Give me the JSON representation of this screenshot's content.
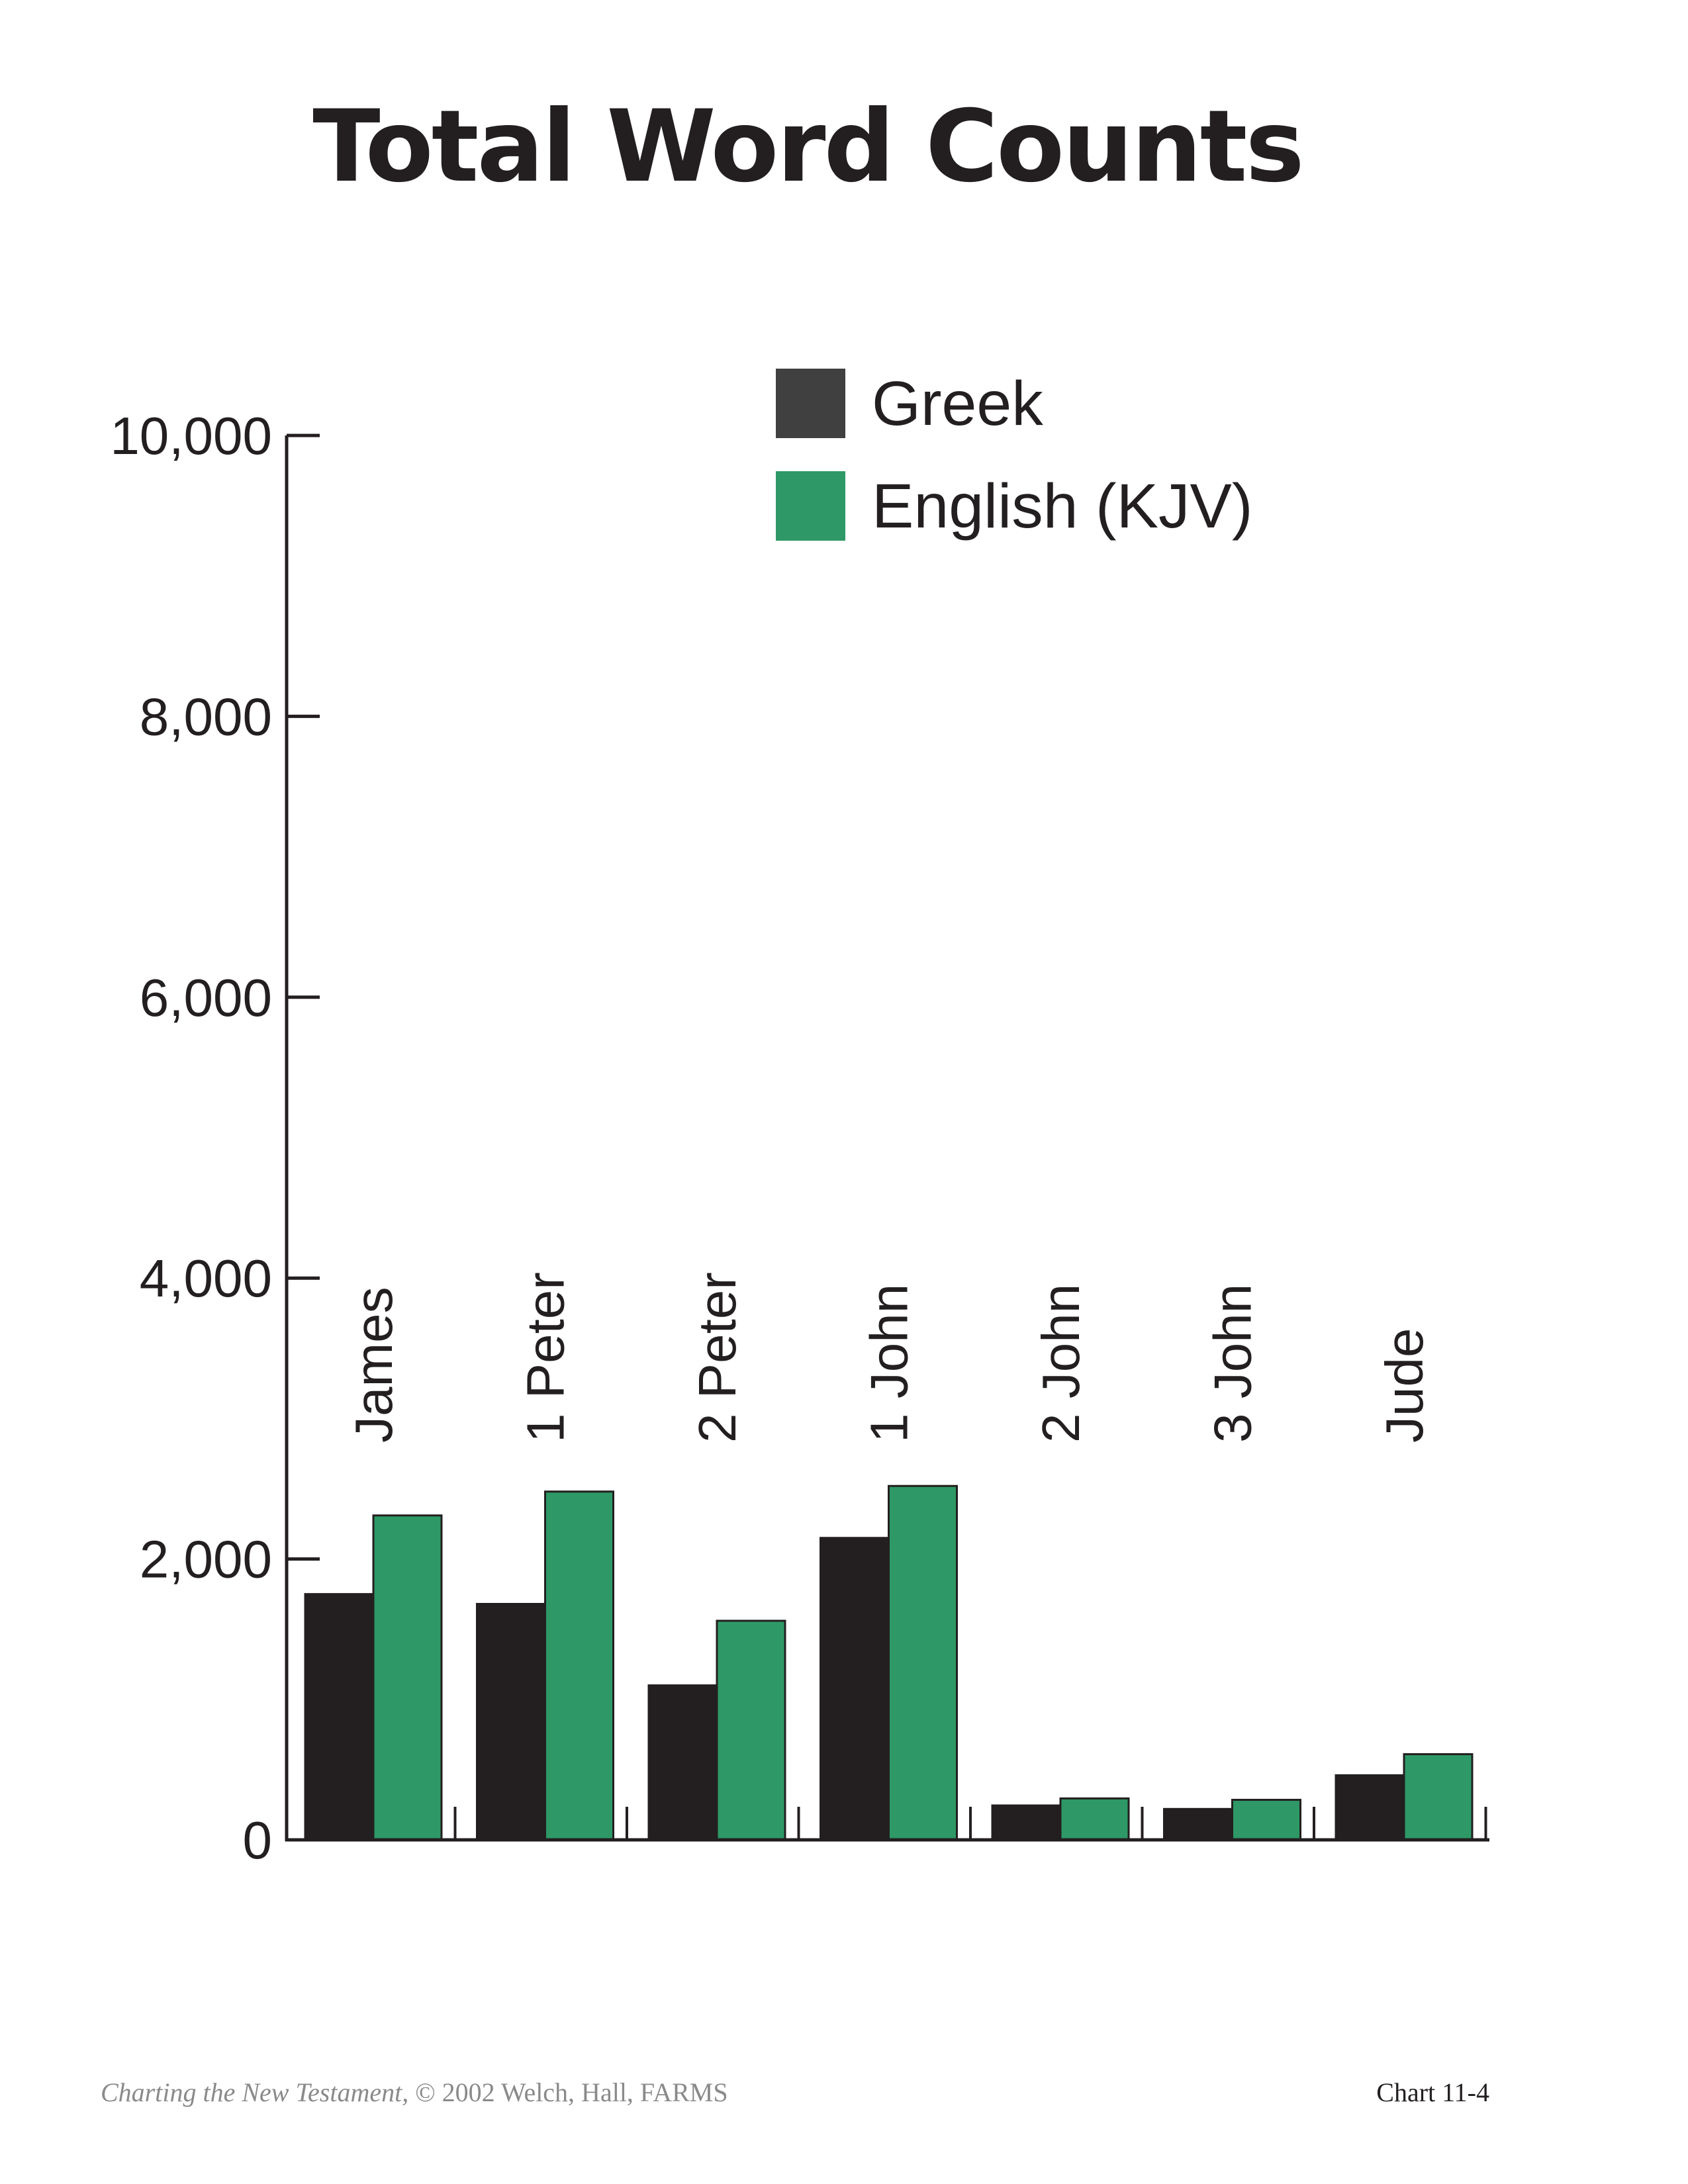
{
  "chart_data": {
    "type": "bar",
    "title": "Total Word Counts",
    "categories": [
      "James",
      "1 Peter",
      "2 Peter",
      "1 John",
      "2 John",
      "3 John",
      "Jude"
    ],
    "series": [
      {
        "name": "Greek",
        "color": "#231f20",
        "values": [
          1750,
          1680,
          1100,
          2150,
          245,
          220,
          460
        ]
      },
      {
        "name": "English (KJV)",
        "color": "#2e9966",
        "values": [
          2310,
          2480,
          1560,
          2520,
          295,
          285,
          610
        ]
      }
    ],
    "ylim": [
      0,
      10000
    ],
    "y_ticks": [
      "0",
      "2,000",
      "4,000",
      "6,000",
      "8,000",
      "10,000"
    ],
    "y_tick_values": [
      0,
      2000,
      4000,
      6000,
      8000,
      10000
    ],
    "xlabel": "",
    "ylabel": "",
    "grid": false,
    "legend_position": "top-right"
  },
  "footer": {
    "source_italic": "Charting the New Testament,",
    "source_rest": " © 2002 Welch, Hall, FARMS",
    "chart_number": "Chart 11-4"
  }
}
